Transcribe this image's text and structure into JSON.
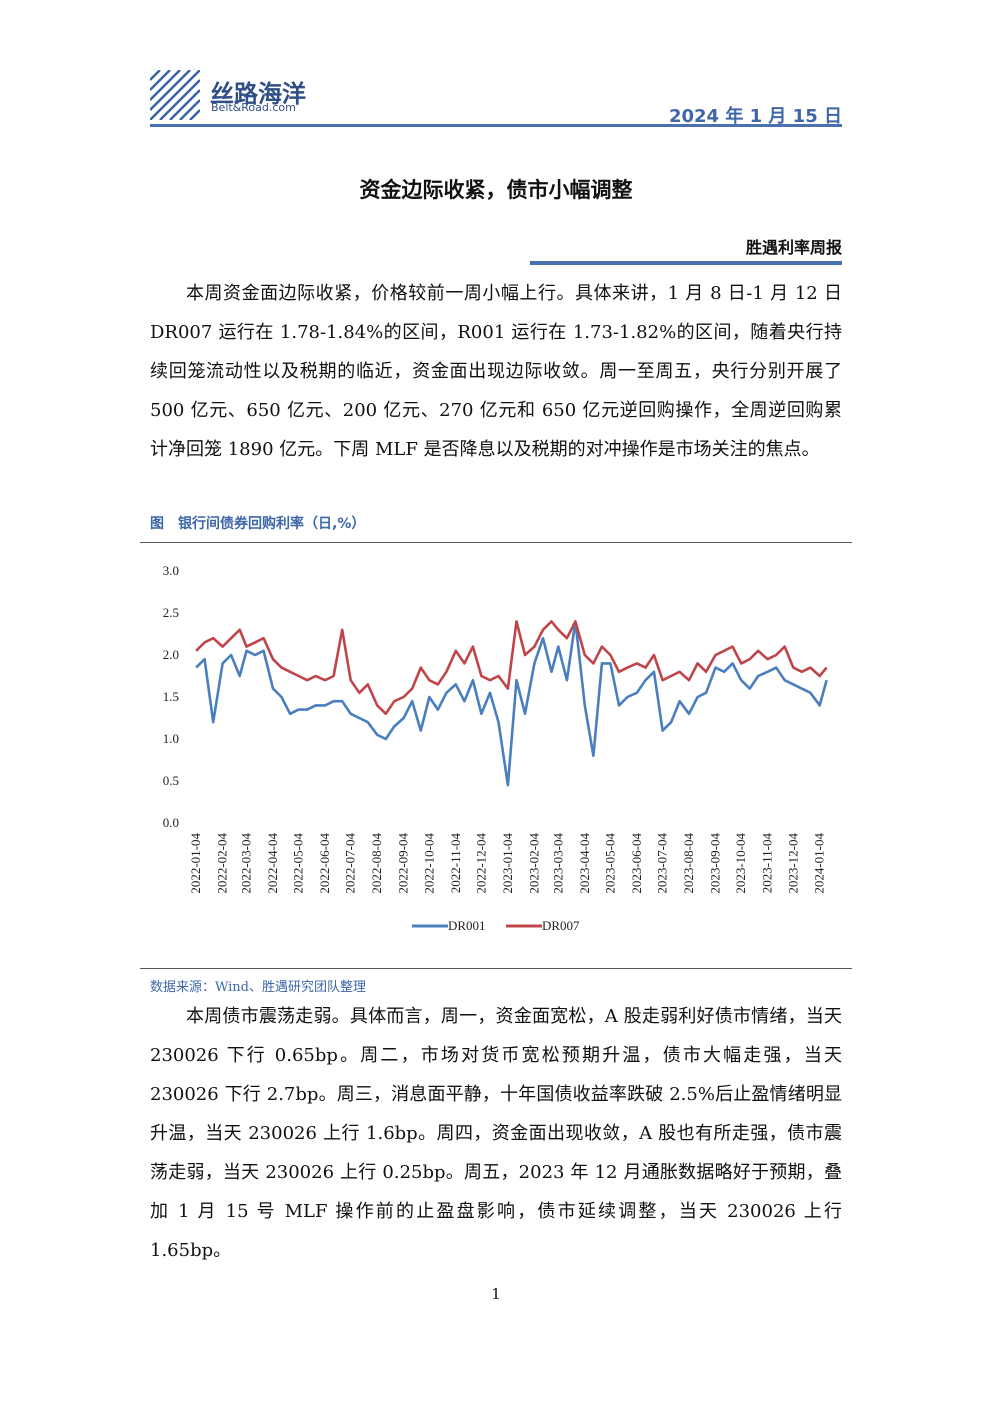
{
  "header": {
    "brand": "丝路海洋",
    "brand_sub": "Belt&Road.com",
    "date": "2024 年 1 月 15 日"
  },
  "title": "资金边际收紧，债市小幅调整",
  "column": "胜遇利率周报",
  "paragraphs": [
    "本周资金面边际收紧，价格较前一周小幅上行。具体来讲，1 月 8 日-1 月 12 日 DR007 运行在 1.78-1.84%的区间，R001 运行在 1.73-1.82%的区间，随着央行持续回笼流动性以及税期的临近，资金面出现边际收敛。周一至周五，央行分别开展了 500 亿元、650 亿元、200 亿元、270 亿元和 650 亿元逆回购操作，全周逆回购累计净回笼 1890 亿元。下周 MLF 是否降息以及税期的对冲操作是市场关注的焦点。",
    "本周债市震荡走弱。具体而言，周一，资金面宽松，A 股走弱利好债市情绪，当天 230026 下行 0.65bp。周二，市场对货币宽松预期升温，债市大幅走强，当天 230026 下行 2.7bp。周三，消息面平静，十年国债收益率跌破 2.5%后止盈情绪明显升温，当天 230026 上行 1.6bp。周四，资金面出现收敛，A 股也有所走强，债市震荡走弱，当天 230026 上行 0.25bp。周五，2023 年 12 月通胀数据略好于预期，叠加 1 月 15 号 MLF 操作前的止盈盘影响，债市延续调整，当天 230026 上行 1.65bp。"
  ],
  "page_number": "1",
  "chart_data": {
    "type": "line",
    "title": "图　银行间债券回购利率（日,%）",
    "source": "数据来源：Wind、胜遇研究团队整理",
    "x": [
      "2022-01-04",
      "2022-01-14",
      "2022-01-24",
      "2022-02-04",
      "2022-02-14",
      "2022-02-24",
      "2022-03-04",
      "2022-03-14",
      "2022-03-24",
      "2022-04-04",
      "2022-04-14",
      "2022-04-24",
      "2022-05-04",
      "2022-05-14",
      "2022-05-24",
      "2022-06-04",
      "2022-06-14",
      "2022-06-24",
      "2022-07-04",
      "2022-07-14",
      "2022-07-24",
      "2022-08-04",
      "2022-08-14",
      "2022-08-24",
      "2022-09-04",
      "2022-09-14",
      "2022-09-24",
      "2022-10-04",
      "2022-10-14",
      "2022-10-24",
      "2022-11-04",
      "2022-11-14",
      "2022-11-24",
      "2022-12-04",
      "2022-12-14",
      "2022-12-24",
      "2023-01-04",
      "2023-01-14",
      "2023-01-24",
      "2023-02-04",
      "2023-02-14",
      "2023-02-24",
      "2023-03-04",
      "2023-03-14",
      "2023-03-24",
      "2023-04-04",
      "2023-04-14",
      "2023-04-24",
      "2023-05-04",
      "2023-05-14",
      "2023-05-24",
      "2023-06-04",
      "2023-06-14",
      "2023-06-24",
      "2023-07-04",
      "2023-07-14",
      "2023-07-24",
      "2023-08-04",
      "2023-08-14",
      "2023-08-24",
      "2023-09-04",
      "2023-09-14",
      "2023-09-24",
      "2023-10-04",
      "2023-10-14",
      "2023-10-24",
      "2023-11-04",
      "2023-11-14",
      "2023-11-24",
      "2023-12-04",
      "2023-12-14",
      "2023-12-24",
      "2024-01-04",
      "2024-01-12"
    ],
    "series": [
      {
        "name": "DR001",
        "color": "#4a7ebf",
        "values": [
          1.85,
          1.95,
          1.2,
          1.9,
          2.0,
          1.75,
          2.05,
          2.0,
          2.05,
          1.6,
          1.5,
          1.3,
          1.35,
          1.35,
          1.4,
          1.4,
          1.45,
          1.45,
          1.3,
          1.25,
          1.2,
          1.05,
          1.0,
          1.15,
          1.25,
          1.45,
          1.1,
          1.5,
          1.35,
          1.55,
          1.65,
          1.45,
          1.7,
          1.3,
          1.55,
          1.2,
          0.45,
          1.7,
          1.3,
          1.9,
          2.2,
          1.8,
          2.1,
          1.7,
          2.4,
          1.4,
          0.8,
          1.9,
          1.9,
          1.4,
          1.5,
          1.55,
          1.7,
          1.8,
          1.1,
          1.2,
          1.45,
          1.3,
          1.5,
          1.55,
          1.85,
          1.8,
          1.9,
          1.7,
          1.6,
          1.75,
          1.8,
          1.85,
          1.7,
          1.65,
          1.6,
          1.55,
          1.4,
          1.7
        ]
      },
      {
        "name": "DR007",
        "color": "#c0454a",
        "values": [
          2.05,
          2.15,
          2.2,
          2.1,
          2.2,
          2.3,
          2.1,
          2.15,
          2.2,
          1.95,
          1.85,
          1.8,
          1.75,
          1.7,
          1.75,
          1.7,
          1.75,
          2.3,
          1.7,
          1.55,
          1.65,
          1.4,
          1.3,
          1.45,
          1.5,
          1.6,
          1.85,
          1.7,
          1.65,
          1.8,
          2.05,
          1.9,
          2.1,
          1.75,
          1.7,
          1.75,
          1.6,
          2.4,
          2.0,
          2.1,
          2.3,
          2.4,
          2.3,
          2.2,
          2.4,
          2.0,
          1.9,
          2.1,
          2.0,
          1.8,
          1.85,
          1.9,
          1.85,
          2.0,
          1.7,
          1.75,
          1.8,
          1.7,
          1.9,
          1.8,
          2.0,
          2.05,
          2.1,
          1.9,
          1.95,
          2.05,
          1.95,
          2.0,
          2.1,
          1.85,
          1.8,
          1.85,
          1.75,
          1.85
        ]
      }
    ],
    "xlim": [
      "2021-12-22",
      "2024-01-16"
    ],
    "xticks": [
      "2022-01-04",
      "2022-02-04",
      "2022-03-04",
      "2022-04-04",
      "2022-05-04",
      "2022-06-04",
      "2022-07-04",
      "2022-08-04",
      "2022-09-04",
      "2022-10-04",
      "2022-11-04",
      "2022-12-04",
      "2023-01-04",
      "2023-02-04",
      "2023-03-04",
      "2023-04-04",
      "2023-05-04",
      "2023-06-04",
      "2023-07-04",
      "2023-08-04",
      "2023-09-04",
      "2023-10-04",
      "2023-11-04",
      "2023-12-04",
      "2024-01-04"
    ],
    "ylim": [
      0,
      3
    ],
    "yticks": [
      {
        "value": 0,
        "label": "0.0"
      },
      0.5,
      {
        "value": 1,
        "label": "1.0"
      },
      1.5,
      {
        "value": 2,
        "label": "2.0"
      },
      2.5,
      {
        "value": 3,
        "label": "3.0"
      }
    ],
    "grid": false,
    "legend": "bottom"
  }
}
